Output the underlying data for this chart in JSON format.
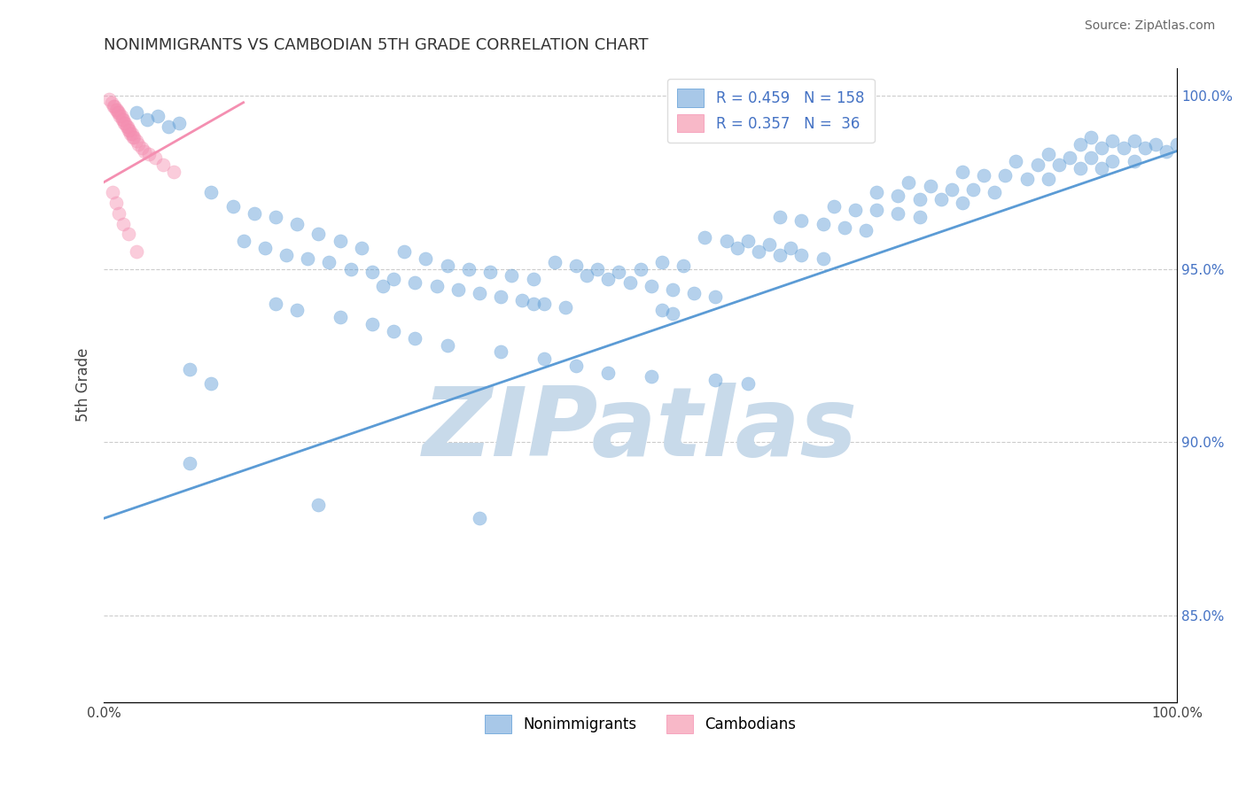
{
  "title": "NONIMMIGRANTS VS CAMBODIAN 5TH GRADE CORRELATION CHART",
  "source": "Source: ZipAtlas.com",
  "ylabel": "5th Grade",
  "x_min": 0.0,
  "x_max": 1.0,
  "y_min": 0.825,
  "y_max": 1.008,
  "right_yticks": [
    0.85,
    0.9,
    0.95,
    1.0
  ],
  "right_yticklabels": [
    "85.0%",
    "90.0%",
    "95.0%",
    "100.0%"
  ],
  "x_ticks": [
    0.0,
    1.0
  ],
  "x_ticklabels": [
    "0.0%",
    "100.0%"
  ],
  "blue_color": "#5b9bd5",
  "pink_color": "#f48fb1",
  "blue_alpha": 0.45,
  "pink_alpha": 0.45,
  "scatter_size": 120,
  "grid_color": "#cccccc",
  "watermark": "ZIPatlas",
  "watermark_color": "#c8daea",
  "watermark_fontsize": 78,
  "title_color": "#333333",
  "source_color": "#666666",
  "blue_line_x": [
    0.0,
    1.0
  ],
  "blue_line_y": [
    0.878,
    0.984
  ],
  "pink_line_x": [
    0.0,
    0.13
  ],
  "pink_line_y": [
    0.975,
    0.998
  ],
  "blue_scatter_x": [
    0.03,
    0.04,
    0.05,
    0.06,
    0.07,
    0.1,
    0.12,
    0.14,
    0.16,
    0.18,
    0.2,
    0.22,
    0.24,
    0.13,
    0.15,
    0.17,
    0.19,
    0.21,
    0.23,
    0.25,
    0.27,
    0.28,
    0.3,
    0.32,
    0.34,
    0.36,
    0.38,
    0.4,
    0.29,
    0.31,
    0.33,
    0.35,
    0.37,
    0.39,
    0.41,
    0.43,
    0.42,
    0.44,
    0.46,
    0.48,
    0.5,
    0.52,
    0.54,
    0.45,
    0.47,
    0.49,
    0.51,
    0.53,
    0.55,
    0.57,
    0.56,
    0.58,
    0.6,
    0.62,
    0.64,
    0.59,
    0.61,
    0.63,
    0.65,
    0.67,
    0.63,
    0.65,
    0.67,
    0.69,
    0.71,
    0.68,
    0.7,
    0.72,
    0.74,
    0.76,
    0.72,
    0.74,
    0.76,
    0.78,
    0.8,
    0.75,
    0.77,
    0.79,
    0.81,
    0.83,
    0.8,
    0.82,
    0.84,
    0.86,
    0.88,
    0.85,
    0.87,
    0.89,
    0.91,
    0.93,
    0.88,
    0.9,
    0.92,
    0.94,
    0.96,
    0.91,
    0.93,
    0.95,
    0.97,
    0.99,
    0.92,
    0.94,
    0.96,
    0.98,
    1.0,
    0.08,
    0.1,
    0.26,
    0.4,
    0.52,
    0.53,
    0.08,
    0.2,
    0.35,
    0.16,
    0.18,
    0.22,
    0.25,
    0.27,
    0.29,
    0.32,
    0.37,
    0.41,
    0.44,
    0.47,
    0.51,
    0.57,
    0.6
  ],
  "blue_scatter_y": [
    0.995,
    0.993,
    0.994,
    0.991,
    0.992,
    0.972,
    0.968,
    0.966,
    0.965,
    0.963,
    0.96,
    0.958,
    0.956,
    0.958,
    0.956,
    0.954,
    0.953,
    0.952,
    0.95,
    0.949,
    0.947,
    0.955,
    0.953,
    0.951,
    0.95,
    0.949,
    0.948,
    0.947,
    0.946,
    0.945,
    0.944,
    0.943,
    0.942,
    0.941,
    0.94,
    0.939,
    0.952,
    0.951,
    0.95,
    0.949,
    0.95,
    0.952,
    0.951,
    0.948,
    0.947,
    0.946,
    0.945,
    0.944,
    0.943,
    0.942,
    0.959,
    0.958,
    0.958,
    0.957,
    0.956,
    0.956,
    0.955,
    0.954,
    0.954,
    0.953,
    0.965,
    0.964,
    0.963,
    0.962,
    0.961,
    0.968,
    0.967,
    0.967,
    0.966,
    0.965,
    0.972,
    0.971,
    0.97,
    0.97,
    0.969,
    0.975,
    0.974,
    0.973,
    0.973,
    0.972,
    0.978,
    0.977,
    0.977,
    0.976,
    0.976,
    0.981,
    0.98,
    0.98,
    0.979,
    0.979,
    0.983,
    0.982,
    0.982,
    0.981,
    0.981,
    0.986,
    0.985,
    0.985,
    0.985,
    0.984,
    0.988,
    0.987,
    0.987,
    0.986,
    0.986,
    0.921,
    0.917,
    0.945,
    0.94,
    0.938,
    0.937,
    0.894,
    0.882,
    0.878,
    0.94,
    0.938,
    0.936,
    0.934,
    0.932,
    0.93,
    0.928,
    0.926,
    0.924,
    0.922,
    0.92,
    0.919,
    0.918,
    0.917
  ],
  "pink_scatter_x": [
    0.005,
    0.007,
    0.009,
    0.01,
    0.011,
    0.012,
    0.013,
    0.014,
    0.015,
    0.016,
    0.017,
    0.018,
    0.019,
    0.02,
    0.021,
    0.022,
    0.023,
    0.024,
    0.025,
    0.026,
    0.027,
    0.028,
    0.03,
    0.032,
    0.035,
    0.038,
    0.042,
    0.048,
    0.055,
    0.065,
    0.008,
    0.011,
    0.014,
    0.018,
    0.023,
    0.03
  ],
  "pink_scatter_y": [
    0.999,
    0.998,
    0.997,
    0.997,
    0.996,
    0.996,
    0.995,
    0.995,
    0.994,
    0.994,
    0.993,
    0.993,
    0.992,
    0.992,
    0.991,
    0.991,
    0.99,
    0.99,
    0.989,
    0.989,
    0.988,
    0.988,
    0.987,
    0.986,
    0.985,
    0.984,
    0.983,
    0.982,
    0.98,
    0.978,
    0.972,
    0.969,
    0.966,
    0.963,
    0.96,
    0.955
  ]
}
